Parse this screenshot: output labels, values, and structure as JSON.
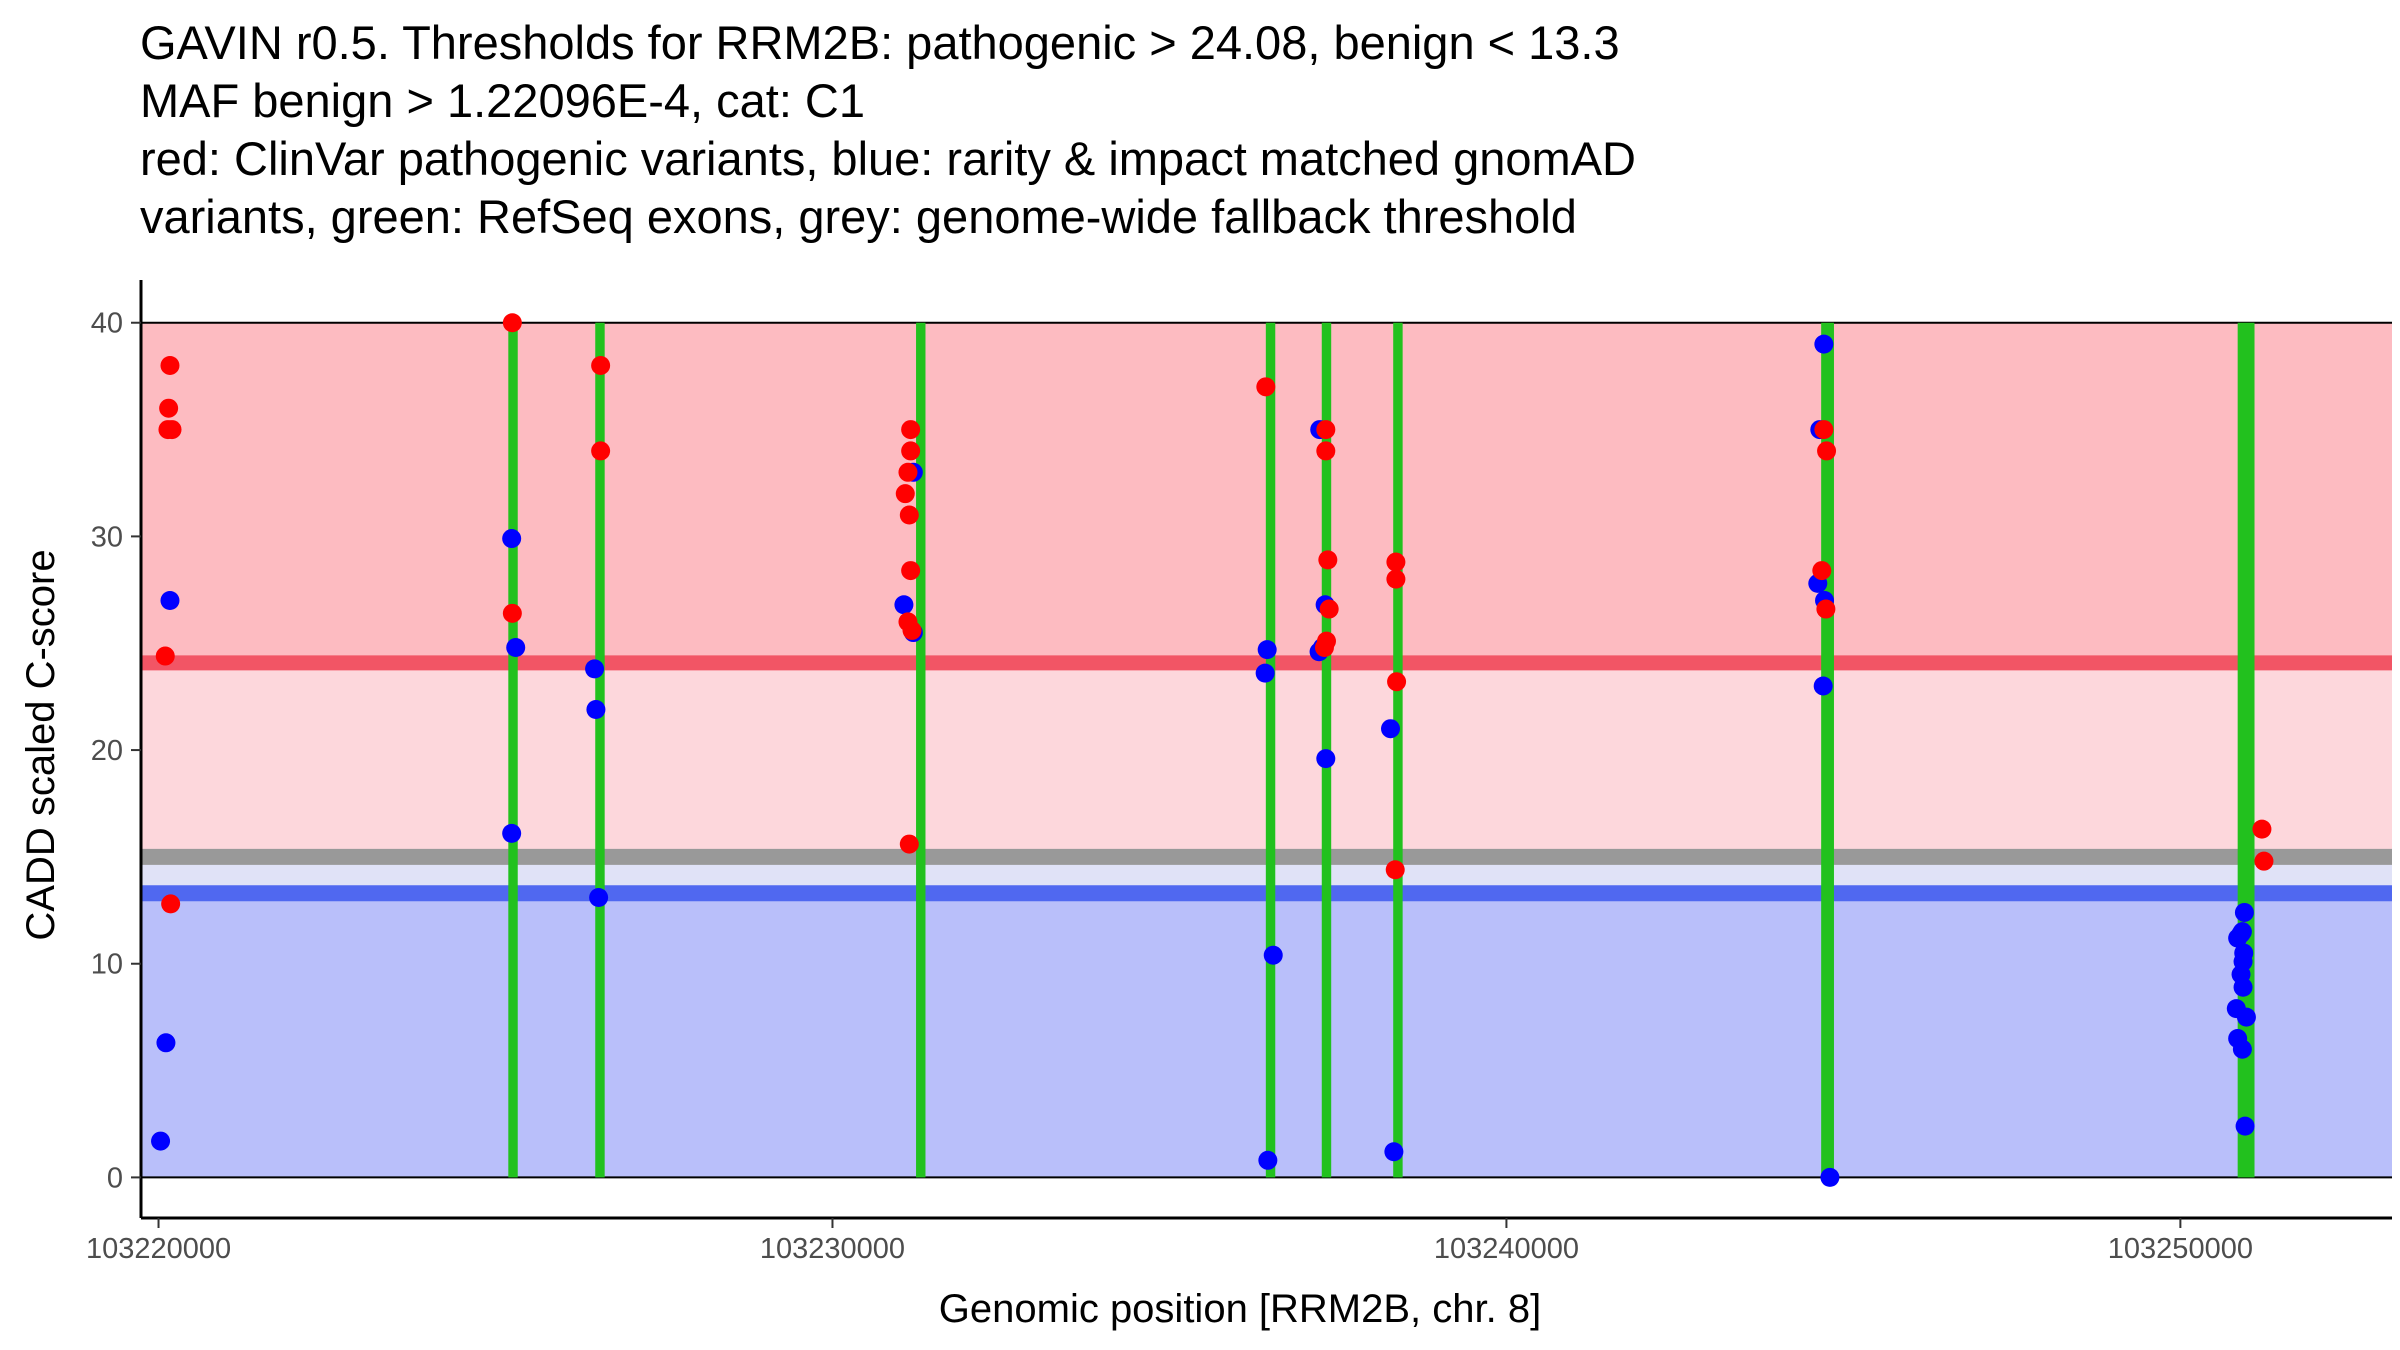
{
  "chart_data": {
    "type": "scatter",
    "title_lines": [
      "GAVIN r0.5. Thresholds for RRM2B: pathogenic > 24.08, benign < 13.3",
      "MAF benign > 1.22096E-4, cat: C1",
      "red: ClinVar pathogenic variants, blue: rarity & impact matched gnomAD",
      "variants, green: RefSeq exons, grey: genome-wide fallback threshold"
    ],
    "xlabel": "Genomic position [RRM2B, chr. 8]",
    "ylabel": "CADD scaled C-score",
    "xlim": [
      103219740,
      103253140
    ],
    "ylim": [
      -1.9,
      42
    ],
    "x_ticks": [
      103220000,
      103230000,
      103240000,
      103250000
    ],
    "x_tick_labels": [
      "103220000",
      "103230000",
      "103240000",
      "103250000"
    ],
    "y_ticks": [
      0,
      10,
      20,
      30,
      40
    ],
    "y_tick_labels": [
      "0",
      "10",
      "20",
      "30",
      "40"
    ],
    "thresholds": {
      "pathogenic": 24.08,
      "benign": 13.3,
      "fallback": 15.0,
      "region_top": 40
    },
    "colors": {
      "pathogenic_region": "#fdbbc1",
      "middle_region": "#fdd7dc",
      "fallback_gap_region": "#e0e2f7",
      "benign_region": "#b9bffa",
      "pathogenic_line": "#f25565",
      "benign_line": "#5068f0",
      "fallback_line": "#999999",
      "exon": "#22c11e",
      "clinvar_point": "#ff0000",
      "gnomad_point": "#0000ff"
    },
    "exons": [
      {
        "start": 103225190,
        "end": 103225330
      },
      {
        "start": 103226480,
        "end": 103226620
      },
      {
        "start": 103231240,
        "end": 103231380
      },
      {
        "start": 103236430,
        "end": 103236570
      },
      {
        "start": 103237260,
        "end": 103237400
      },
      {
        "start": 103238320,
        "end": 103238460
      },
      {
        "start": 103244670,
        "end": 103244860
      },
      {
        "start": 103250850,
        "end": 103251100
      }
    ],
    "series": [
      {
        "name": "ClinVar pathogenic",
        "color": "#ff0000",
        "points": [
          [
            103220100,
            24.4
          ],
          [
            103220150,
            36.0
          ],
          [
            103220170,
            38.0
          ],
          [
            103220140,
            35.0
          ],
          [
            103220200,
            35.0
          ],
          [
            103220180,
            12.8
          ],
          [
            103225250,
            40.0
          ],
          [
            103225250,
            26.4
          ],
          [
            103226560,
            38.0
          ],
          [
            103226560,
            34.0
          ],
          [
            103231080,
            32.0
          ],
          [
            103231140,
            31.0
          ],
          [
            103231160,
            35.0
          ],
          [
            103231160,
            34.0
          ],
          [
            103231120,
            33.0
          ],
          [
            103231160,
            28.4
          ],
          [
            103231120,
            26.0
          ],
          [
            103231180,
            25.6
          ],
          [
            103231140,
            15.6
          ],
          [
            103236430,
            37.0
          ],
          [
            103237320,
            35.0
          ],
          [
            103237320,
            34.0
          ],
          [
            103237350,
            28.9
          ],
          [
            103237370,
            26.6
          ],
          [
            103237330,
            25.1
          ],
          [
            103237300,
            24.8
          ],
          [
            103238360,
            28.8
          ],
          [
            103238360,
            28.0
          ],
          [
            103238370,
            23.2
          ],
          [
            103238350,
            14.4
          ],
          [
            103244710,
            35.0
          ],
          [
            103244750,
            34.0
          ],
          [
            103244680,
            28.4
          ],
          [
            103244740,
            26.6
          ],
          [
            103251210,
            16.3
          ],
          [
            103251240,
            14.8
          ]
        ]
      },
      {
        "name": "gnomAD matched",
        "color": "#0000ff",
        "points": [
          [
            103220030,
            1.7
          ],
          [
            103220110,
            6.3
          ],
          [
            103220170,
            27.0
          ],
          [
            103225240,
            29.9
          ],
          [
            103225300,
            24.8
          ],
          [
            103225240,
            16.1
          ],
          [
            103226470,
            23.8
          ],
          [
            103226490,
            21.9
          ],
          [
            103226530,
            13.1
          ],
          [
            103231060,
            26.8
          ],
          [
            103231200,
            33.0
          ],
          [
            103231200,
            25.5
          ],
          [
            103236450,
            24.7
          ],
          [
            103236420,
            23.6
          ],
          [
            103236540,
            10.4
          ],
          [
            103236460,
            0.8
          ],
          [
            103237230,
            35.0
          ],
          [
            103237220,
            24.6
          ],
          [
            103237270,
            24.8
          ],
          [
            103237310,
            26.8
          ],
          [
            103237320,
            19.6
          ],
          [
            103238280,
            21.0
          ],
          [
            103238330,
            1.2
          ],
          [
            103244710,
            39.0
          ],
          [
            103244650,
            35.0
          ],
          [
            103244620,
            27.8
          ],
          [
            103244720,
            27.0
          ],
          [
            103244700,
            23.0
          ],
          [
            103244800,
            0.0
          ],
          [
            103250950,
            12.4
          ],
          [
            103250850,
            11.2
          ],
          [
            103250920,
            11.5
          ],
          [
            103250900,
            11.4
          ],
          [
            103250940,
            10.5
          ],
          [
            103250930,
            10.1
          ],
          [
            103250900,
            9.5
          ],
          [
            103250930,
            8.9
          ],
          [
            103250830,
            7.9
          ],
          [
            103250980,
            7.5
          ],
          [
            103250850,
            6.5
          ],
          [
            103250920,
            6.0
          ],
          [
            103250960,
            2.4
          ]
        ]
      }
    ]
  }
}
